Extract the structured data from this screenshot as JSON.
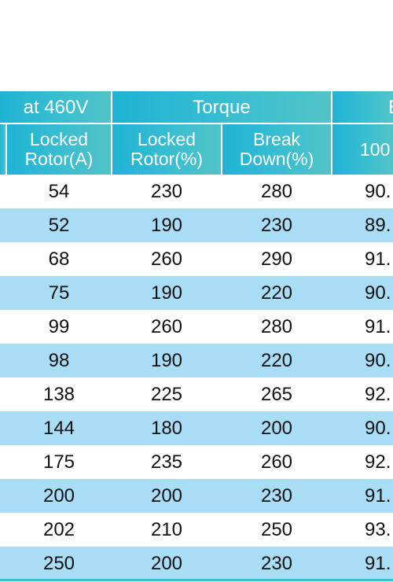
{
  "header": {
    "group_current": "at 460V",
    "group_torque": "Torque",
    "group_efficiency": "E",
    "col_current_locked": [
      "Locked",
      "Rotor(A)"
    ],
    "col_torque_locked": [
      "Locked",
      "Rotor(%)"
    ],
    "col_torque_breakdown": [
      "Break",
      "Down(%)"
    ],
    "col_efficiency_100": "100"
  },
  "rows": [
    [
      "54",
      "230",
      "280",
      "90."
    ],
    [
      "52",
      "190",
      "230",
      "89."
    ],
    [
      "68",
      "260",
      "290",
      "91."
    ],
    [
      "75",
      "190",
      "220",
      "90."
    ],
    [
      "99",
      "260",
      "280",
      "91."
    ],
    [
      "98",
      "190",
      "220",
      "90."
    ],
    [
      "138",
      "225",
      "265",
      "92."
    ],
    [
      "144",
      "180",
      "200",
      "90."
    ],
    [
      "175",
      "235",
      "260",
      "92."
    ],
    [
      "200",
      "200",
      "230",
      "91."
    ],
    [
      "202",
      "210",
      "250",
      "93."
    ],
    [
      "250",
      "200",
      "230",
      "91."
    ]
  ],
  "colors": {
    "header_bg": "#1fb3d4",
    "header_text": "#ffffff",
    "row_alt_bg": "#a9dcf5",
    "row_bg": "#ffffff",
    "text": "#111111"
  }
}
